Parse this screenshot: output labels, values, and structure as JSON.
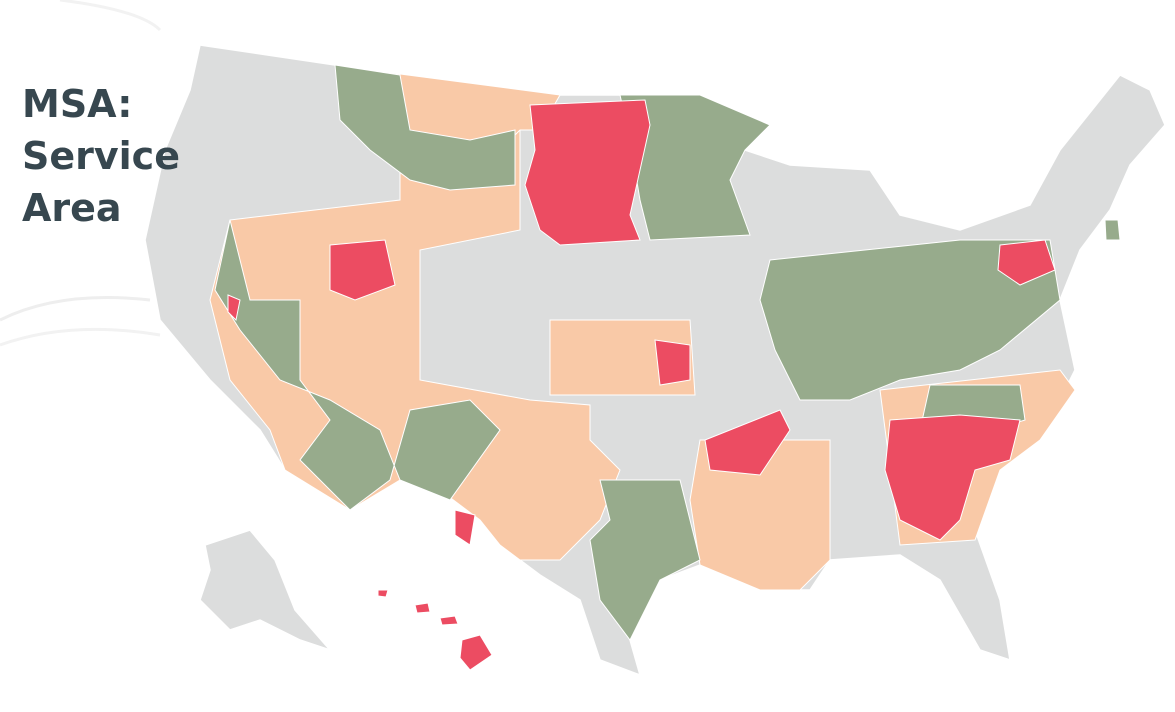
{
  "header": {
    "title_lines": [
      "MSA:",
      "Service",
      "Area"
    ]
  }
}
